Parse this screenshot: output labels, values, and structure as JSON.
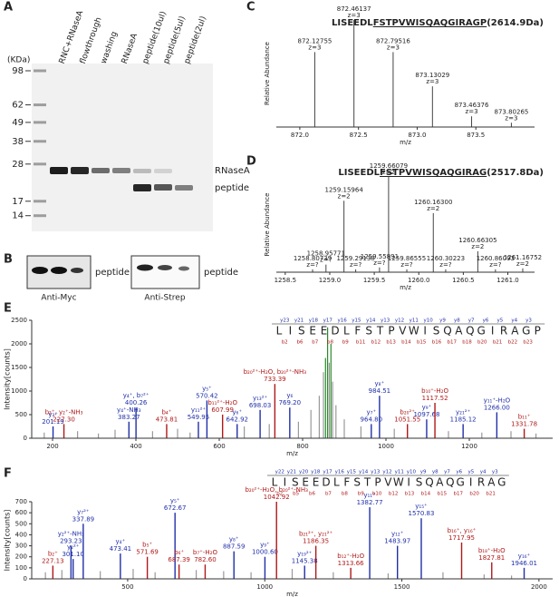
{
  "figure": {
    "panel_labels": [
      "A",
      "B",
      "C",
      "D",
      "E",
      "F"
    ],
    "gel": {
      "unit": "(KDa)",
      "markers": [
        98,
        62,
        49,
        38,
        28,
        17,
        14
      ],
      "lanes": [
        "RNC+RNaseA",
        "flowthrough",
        "washing",
        "RNaseA",
        "peptide(10ul)",
        "peptide(5ul)",
        "peptide(2ul)"
      ],
      "band_labels": [
        "RNaseA",
        "peptide"
      ]
    },
    "blot": {
      "left": {
        "label": "peptide",
        "antibody": "Anti-Myc"
      },
      "right": {
        "label": "peptide",
        "antibody": "Anti-Strep"
      }
    }
  },
  "chart_data": [
    {
      "type": "stem",
      "title_pre": "LISEEDL",
      "title_under": "FSTPVWISQAQGIRAGP",
      "title_post": "(2614.9Da)",
      "x_label": "m/z",
      "y_label": "Relative Abundance",
      "xlim": [
        871.8,
        874.0
      ],
      "xticks": [
        {
          "value": 872,
          "label": "872.0"
        },
        872.5,
        {
          "value": 873,
          "label": "873.0"
        },
        873.5
      ],
      "ylim": [
        0,
        100
      ],
      "x": [
        872.12755,
        872.46137,
        872.79516,
        873.13029,
        873.46376,
        873.80265
      ],
      "values": [
        70,
        100,
        70,
        38,
        10,
        4
      ],
      "x_labels": [
        "872.12755",
        "872.46137",
        "872.79516",
        "873.13029",
        "873.46376",
        "873.80265"
      ],
      "charges": [
        "z=3",
        "z=3",
        "z=3",
        "z=3",
        "z=3",
        "z=3"
      ],
      "color": "#444"
    },
    {
      "type": "stem",
      "title_pre": "LISEEDL",
      "title_under": "FSTPVWISQAQGIRAG",
      "title_post": "(2517.8Da)",
      "x_label": "m/z",
      "y_label": "Relative Abundance",
      "xlim": [
        1258.4,
        1261.3
      ],
      "xticks": [
        1258.5,
        {
          "value": 1259,
          "label": "1259.0"
        },
        1259.5,
        {
          "value": 1260,
          "label": "1260.0"
        },
        1260.5,
        {
          "value": 1261,
          "label": "1261.0"
        }
      ],
      "ylim": [
        0,
        100
      ],
      "x": [
        1258.80739,
        1258.95771,
        1259.15964,
        1259.29138,
        1259.55891,
        1259.66079,
        1259.86555,
        1260.163,
        1260.30223,
        1260.66305,
        1260.86093,
        1261.16752
      ],
      "values": [
        3,
        8,
        75,
        3,
        5,
        100,
        3,
        62,
        3,
        22,
        3,
        4
      ],
      "x_labels": [
        "1258.80739",
        "1258.95771",
        "1259.15964",
        "1259.29138",
        "1259.55891",
        "1259.66079",
        "1259.86555",
        "1260.16300",
        "1260.30223",
        "1260.66305",
        "1260.86093",
        "1261.16752"
      ],
      "charges": [
        "z=?",
        "z=?",
        "z=2",
        "z=?",
        "z=?",
        "z=2",
        "z=?",
        "z=2",
        "z=?",
        "z=2",
        "z=?",
        "z=2"
      ],
      "color": "#444"
    },
    {
      "type": "spectrum",
      "x_label": "m/z",
      "y_label": "Intensity[counts]",
      "xlim": [
        150,
        1400
      ],
      "xticks": [
        200,
        400,
        600,
        800,
        1000,
        1200
      ],
      "ylim": [
        0,
        2500
      ],
      "yticks": [
        0,
        500,
        1000,
        1500,
        2000,
        2500
      ],
      "sequence": [
        "L",
        "I",
        "S",
        "E",
        "E",
        "D",
        "L",
        "F",
        "S",
        "T",
        "P",
        "V",
        "W",
        "I",
        "S",
        "Q",
        "A",
        "Q",
        "G",
        "I",
        "R",
        "A",
        "G",
        "P"
      ],
      "y_ions": [
        "y23",
        "y21",
        "y18",
        "y17",
        "y16",
        "y15",
        "y14",
        "y13",
        "y12",
        "y11",
        "y10",
        "y9",
        "y8",
        "y7",
        "y6",
        "y5",
        "y4",
        "y3"
      ],
      "b_ions": [
        "b2",
        "b6",
        "b7",
        "b8",
        "b9",
        "b11",
        "b12",
        "b13",
        "b14",
        "b15",
        "b16",
        "b17",
        "b18",
        "b20",
        "b21",
        "b22",
        "b23"
      ],
      "peaks": [
        {
          "ion": "y₃⁺",
          "mz": "201.19",
          "x": 201.19,
          "value": 250,
          "color": "#1f2fa8"
        },
        {
          "ion": "b₂⁺, y₂⁺-NH₃",
          "mz": "227.30",
          "x": 227.3,
          "value": 300,
          "color": "#b01818"
        },
        {
          "ion": "y₄⁺-NH₃",
          "mz": "383.27",
          "x": 383.27,
          "value": 350,
          "color": "#1f2fa8"
        },
        {
          "ion": "y₄⁺, b₇²⁺",
          "mz": "400.26",
          "x": 400.26,
          "value": 650,
          "color": "#1f2fa8"
        },
        {
          "ion": "b₄⁺",
          "mz": "473.81",
          "x": 473.81,
          "value": 300,
          "color": "#b01818"
        },
        {
          "ion": "y₁₁²⁺",
          "mz": "549.95",
          "x": 549.95,
          "value": 350,
          "color": "#1f2fa8"
        },
        {
          "ion": "y₅⁺",
          "mz": "570.42",
          "x": 570.42,
          "value": 800,
          "color": "#1f2fa8"
        },
        {
          "ion": "b₁₁²⁺-H₂O",
          "mz": "607.99",
          "x": 607.99,
          "value": 500,
          "color": "#b01818"
        },
        {
          "ion": "y₆⁺",
          "mz": "642.92",
          "x": 642.92,
          "value": 300,
          "color": "#1f2fa8"
        },
        {
          "ion": "y₁₃²⁺",
          "mz": "698.03",
          "x": 698.03,
          "value": 600,
          "color": "#1f2fa8"
        },
        {
          "ion": "b₂₀²⁺-H₂O, b₂₀²⁺-NH₃",
          "mz": "733.39",
          "x": 733.39,
          "value": 1150,
          "color": "#b01818"
        },
        {
          "ion": "y₆",
          "mz": "769.20",
          "x": 769.2,
          "value": 650,
          "color": "#1f2fa8"
        },
        {
          "ion": "y₇⁺",
          "mz": "964.80",
          "x": 964.8,
          "value": 300,
          "color": "#1f2fa8"
        },
        {
          "ion": "y₈⁺",
          "mz": "984.51",
          "x": 984.51,
          "value": 900,
          "color": "#1f2fa8"
        },
        {
          "ion": "b₂₀²⁺",
          "mz": "1051.55",
          "x": 1051.55,
          "value": 300,
          "color": "#b01818"
        },
        {
          "ion": "y₉⁺",
          "mz": "1097.68",
          "x": 1097.68,
          "value": 400,
          "color": "#1f2fa8"
        },
        {
          "ion": "b₁₀⁺-H₂O",
          "mz": "1117.52",
          "x": 1117.52,
          "value": 750,
          "color": "#b01818"
        },
        {
          "ion": "y₂₁²⁺",
          "mz": "1185.12",
          "x": 1185.12,
          "value": 300,
          "color": "#1f2fa8"
        },
        {
          "ion": "y₁₁⁺-H₂O",
          "mz": "1266.00",
          "x": 1266.0,
          "value": 550,
          "color": "#1f2fa8"
        },
        {
          "ion": "b₁₁⁺",
          "mz": "1331.78",
          "x": 1331.78,
          "value": 200,
          "color": "#b01818"
        }
      ],
      "background": {
        "x": [
          180,
          260,
          310,
          350,
          440,
          500,
          530,
          660,
          720,
          790,
          820,
          840,
          850,
          855,
          860,
          864,
          868,
          872,
          880,
          900,
          940,
          1020,
          1150,
          1230,
          1300,
          1360
        ],
        "values": [
          120,
          150,
          100,
          180,
          150,
          200,
          120,
          250,
          300,
          350,
          600,
          900,
          1400,
          1700,
          2350,
          1600,
          2000,
          1200,
          700,
          400,
          250,
          200,
          150,
          120,
          150,
          100
        ],
        "colors": [
          "#999",
          "#999",
          "#999",
          "#999",
          "#999",
          "#999",
          "#999",
          "#999",
          "#999",
          "#999",
          "#999",
          "#999",
          "#999",
          "#2a8a2a",
          "#2a8a2a",
          "#999",
          "#2a8a2a",
          "#999",
          "#999",
          "#999",
          "#999",
          "#999",
          "#999",
          "#999",
          "#999",
          "#999"
        ]
      }
    },
    {
      "type": "spectrum",
      "x_label": "m/z",
      "y_label": "Intensity[counts]",
      "xlim": [
        150,
        2050
      ],
      "xticks": [
        500,
        1000,
        1500,
        2000
      ],
      "ylim": [
        0,
        700
      ],
      "yticks": [
        0,
        100,
        200,
        300,
        400,
        500,
        600,
        700
      ],
      "sequence": [
        "L",
        "I",
        "S",
        "E",
        "E",
        "D",
        "L",
        "F",
        "S",
        "T",
        "P",
        "V",
        "W",
        "I",
        "S",
        "Q",
        "A",
        "Q",
        "G",
        "I",
        "R",
        "A",
        "G"
      ],
      "y_ions": [
        "y22",
        "y21",
        "y20",
        "y18",
        "y17",
        "y16",
        "y15",
        "y14",
        "y13",
        "y12",
        "y11",
        "y10",
        "y9",
        "y8",
        "y7",
        "y6",
        "y5",
        "y4",
        "y3"
      ],
      "b_ions": [
        "b2",
        "b5",
        "b6",
        "b7",
        "b8",
        "b9",
        "b10",
        "b12",
        "b13",
        "b14",
        "b15",
        "b17",
        "b20",
        "b21"
      ],
      "peaks": [
        {
          "ion": "b₂⁺",
          "mz": "227.13",
          "x": 227.13,
          "value": 120,
          "color": "#b01818"
        },
        {
          "ion": "y₂²⁺-NH₃",
          "mz": "293.23",
          "x": 293.23,
          "value": 300,
          "color": "#1f2fa8"
        },
        {
          "ion": "y₂²⁺",
          "mz": "301.10",
          "x": 301.1,
          "value": 180,
          "color": "#1f2fa8"
        },
        {
          "ion": "y₇²⁺",
          "mz": "337.89",
          "x": 337.89,
          "value": 500,
          "color": "#1f2fa8"
        },
        {
          "ion": "y₄⁺",
          "mz": "473.41",
          "x": 473.41,
          "value": 230,
          "color": "#1f2fa8"
        },
        {
          "ion": "b₅⁺",
          "mz": "571.69",
          "x": 571.69,
          "value": 200,
          "color": "#b01818"
        },
        {
          "ion": "y₅⁺",
          "mz": "672.67",
          "x": 672.67,
          "value": 600,
          "color": "#1f2fa8"
        },
        {
          "ion": "b₆⁺",
          "mz": "687.39",
          "x": 687.39,
          "value": 130,
          "color": "#b01818"
        },
        {
          "ion": "b₇⁺-H₂O",
          "mz": "782.60",
          "x": 782.6,
          "value": 130,
          "color": "#b01818"
        },
        {
          "ion": "y₈⁺",
          "mz": "887.59",
          "x": 887.59,
          "value": 250,
          "color": "#1f2fa8"
        },
        {
          "ion": "y₉⁺",
          "mz": "1000.60",
          "x": 1000.6,
          "value": 200,
          "color": "#1f2fa8"
        },
        {
          "ion": "b₂₀²⁺-H₂O, b₂₀²⁺-NH₃",
          "mz": "1042.92",
          "x": 1042.92,
          "value": 700,
          "color": "#b01818"
        },
        {
          "ion": "y₁₉²⁺",
          "mz": "1145.38",
          "x": 1145.38,
          "value": 120,
          "color": "#1f2fa8"
        },
        {
          "ion": "b₂₁²⁺, y₂₁²⁺",
          "mz": "1186.35",
          "x": 1186.35,
          "value": 300,
          "color": "#b01818"
        },
        {
          "ion": "b₁₂⁺-H₂O",
          "mz": "1313.66",
          "x": 1313.66,
          "value": 100,
          "color": "#b01818"
        },
        {
          "ion": "y₁₁⁺",
          "mz": "1382.77",
          "x": 1382.77,
          "value": 650,
          "color": "#1f2fa8"
        },
        {
          "ion": "y₁₂⁺",
          "mz": "1483.97",
          "x": 1483.97,
          "value": 300,
          "color": "#1f2fa8"
        },
        {
          "ion": "y₁₅⁺",
          "mz": "1570.83",
          "x": 1570.83,
          "value": 550,
          "color": "#1f2fa8"
        },
        {
          "ion": "b₁₆⁺, y₁₆⁺",
          "mz": "1717.95",
          "x": 1717.95,
          "value": 330,
          "color": "#b01818"
        },
        {
          "ion": "b₁₈⁺-H₂O",
          "mz": "1827.81",
          "x": 1827.81,
          "value": 150,
          "color": "#b01818"
        },
        {
          "ion": "y₁₆⁺",
          "mz": "1946.01",
          "x": 1946.01,
          "value": 100,
          "color": "#1f2fa8"
        }
      ],
      "background": {
        "x": [
          200,
          260,
          400,
          520,
          600,
          750,
          850,
          950,
          1100,
          1250,
          1450,
          1650,
          1800,
          1900
        ],
        "values": [
          60,
          80,
          70,
          90,
          60,
          80,
          70,
          60,
          90,
          60,
          50,
          60,
          40,
          30
        ],
        "colors": [
          "#999",
          "#999",
          "#999",
          "#999",
          "#999",
          "#999",
          "#999",
          "#999",
          "#999",
          "#999",
          "#999",
          "#999",
          "#999",
          "#999"
        ]
      }
    }
  ]
}
